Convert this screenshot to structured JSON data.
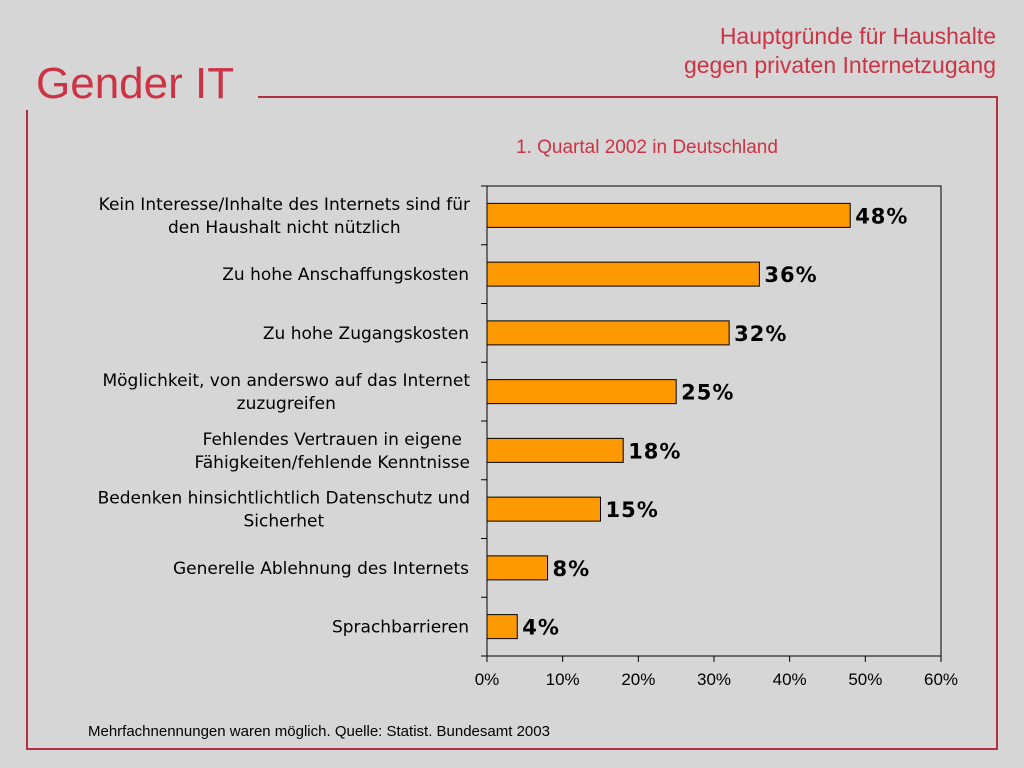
{
  "brand": "Gender IT",
  "heading": {
    "line1": "Hauptgründe für Haushalte",
    "line2": "gegen privaten Internetzugang"
  },
  "subtitle": "1. Quartal 2002 in Deutschland",
  "source": "Mehrfachnennungen waren möglich. Quelle: Statist. Bundesamt 2003",
  "colors": {
    "accent": "#cc3344",
    "frame": "#b23040",
    "bar": "#ff9900",
    "background": "#d6d6d6"
  },
  "chart_data": {
    "type": "bar",
    "orientation": "horizontal",
    "title": "1. Quartal 2002 in Deutschland",
    "categories": [
      [
        "Kein Interesse/Inhalte des Internets sind für",
        "den Haushalt nicht nützlich"
      ],
      [
        "Zu hohe Anschaffungskosten"
      ],
      [
        "Zu hohe Zugangskosten"
      ],
      [
        "Möglichkeit, von anderswo auf das Internet",
        "zuzugreifen"
      ],
      [
        "Fehlendes Vertrauen in eigene",
        "Fähigkeiten/fehlende Kenntnisse"
      ],
      [
        "Bedenken hinsichtlichtlich Datenschutz und",
        "Sicherhet"
      ],
      [
        "Generelle Ablehnung des Internets"
      ],
      [
        "Sprachbarrieren"
      ]
    ],
    "values": [
      48,
      36,
      32,
      25,
      18,
      15,
      8,
      4
    ],
    "value_labels": [
      "48%",
      "36%",
      "32%",
      "25%",
      "18%",
      "15%",
      "8%",
      "4%"
    ],
    "xlim": [
      0,
      60
    ],
    "xticks": [
      "0%",
      "10%",
      "20%",
      "30%",
      "40%",
      "50%",
      "60%"
    ],
    "grid": false,
    "legend": "none"
  }
}
